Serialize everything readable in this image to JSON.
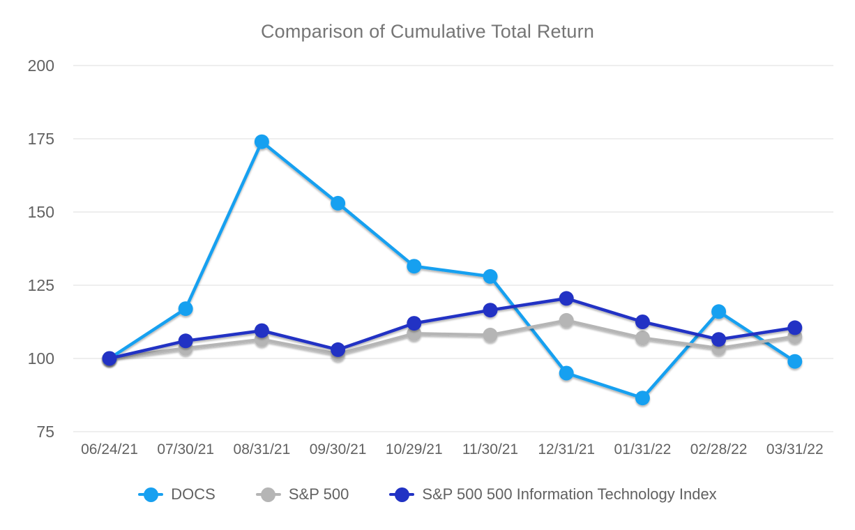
{
  "title": "Comparison of Cumulative Total Return",
  "colors": {
    "background": "#FFFFFF",
    "title_text": "#757575",
    "axis_text": "#616161",
    "gridline": "#E8E8E8",
    "docs_blue": "#18A0F0",
    "sp500_gray": "#B5B5B5",
    "it_index_blue": "#2132C4"
  },
  "chart_data": {
    "type": "line",
    "title": "Comparison of Cumulative Total Return",
    "xlabel": "",
    "ylabel": "",
    "categories": [
      "06/24/21",
      "07/30/21",
      "08/31/21",
      "09/30/21",
      "10/29/21",
      "11/30/21",
      "12/31/21",
      "01/31/22",
      "02/28/22",
      "03/31/22"
    ],
    "series": [
      {
        "name": "DOCS",
        "color": "#18A0F0",
        "values": [
          100,
          117,
          174,
          153,
          131.5,
          128,
          95,
          86.5,
          116,
          99
        ]
      },
      {
        "name": "S&P 500",
        "color": "#B5B5B5",
        "values": [
          100,
          103.5,
          106.5,
          101.5,
          108.5,
          108,
          113,
          107,
          103.5,
          107.5
        ]
      },
      {
        "name": "S&P 500 500 Information Technology Index",
        "color": "#2132C4",
        "values": [
          100,
          106,
          109.5,
          103,
          112,
          116.5,
          120.5,
          112.5,
          106.5,
          110.5
        ]
      }
    ],
    "ylim": [
      75,
      200
    ],
    "yticks": [
      75,
      100,
      125,
      150,
      175,
      200
    ],
    "grid": "horizontal",
    "legend_position": "bottom",
    "marker": "circle",
    "point_radius": 10.5,
    "line_width": 4.5
  }
}
